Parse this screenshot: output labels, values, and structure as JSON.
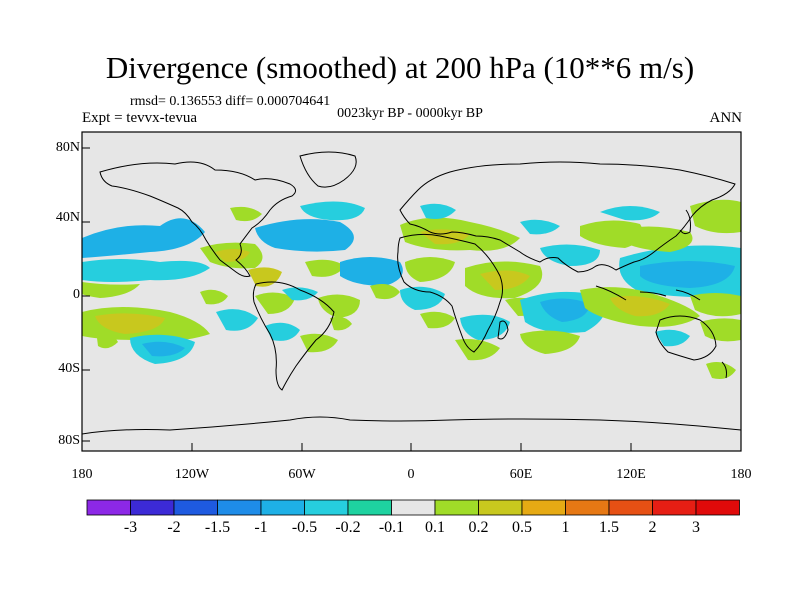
{
  "title": "Divergence (smoothed) at 200 hPa (10**6 m/s)",
  "stats": "rmsd= 0.136553 diff= 0.000704641",
  "experiment": "Expt = tevvx-tevua",
  "period": "0023kyr BP - 0000kyr BP",
  "season": "ANN",
  "lat_labels": [
    "80N",
    "40N",
    "0",
    "40S",
    "80S"
  ],
  "lon_labels": [
    "180",
    "120W",
    "60W",
    "0",
    "60E",
    "120E",
    "180"
  ],
  "colorbar": {
    "labels": [
      "-3",
      "-2",
      "-1.5",
      "-1",
      "-0.5",
      "-0.2",
      "-0.1",
      "0.1",
      "0.2",
      "0.5",
      "1",
      "1.5",
      "2",
      "3"
    ],
    "colors": [
      "#8c28e6",
      "#3c2ad6",
      "#1e5ae0",
      "#1e8ce8",
      "#1eb0e6",
      "#26cede",
      "#1ed2a0",
      "#e6e6e6",
      "#a0dc28",
      "#c8c81e",
      "#e6aa14",
      "#e67814",
      "#e65014",
      "#e61e14",
      "#e00a0a"
    ]
  },
  "map": {
    "background_color": "#e6e6e6",
    "anomaly_colors": {
      "neg_weak": "#26cede",
      "neg_mid": "#1eb0e6",
      "pos_weak": "#a0dc28",
      "pos_mid": "#c8c81e"
    }
  }
}
